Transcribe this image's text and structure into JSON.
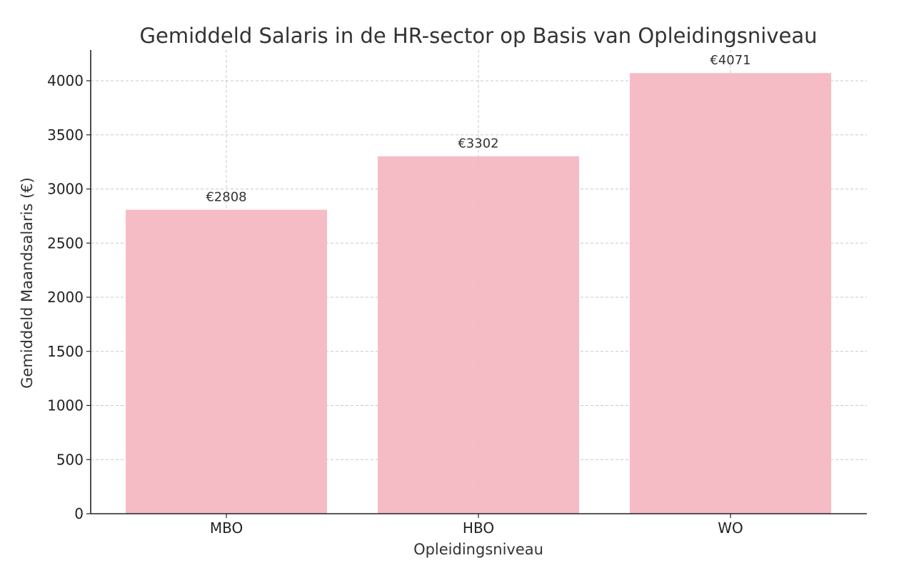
{
  "chart_data": {
    "type": "bar",
    "title": "Gemiddeld Salaris in de HR-sector op Basis van Opleidingsniveau",
    "xlabel": "Opleidingsniveau",
    "ylabel": "Gemiddeld Maandsalaris (€)",
    "categories": [
      "MBO",
      "HBO",
      "WO"
    ],
    "values": [
      2808,
      3302,
      4071
    ],
    "data_labels": [
      "€2808",
      "€3302",
      "€4071"
    ],
    "ylim": [
      0,
      4280
    ],
    "yticks": [
      0,
      500,
      1000,
      1500,
      2000,
      2500,
      3000,
      3500,
      4000
    ],
    "ytick_labels": [
      "0",
      "500",
      "1000",
      "1500",
      "2000",
      "2500",
      "3000",
      "3500",
      "4000"
    ],
    "grid": true,
    "bar_color": "#f4b8c3"
  }
}
